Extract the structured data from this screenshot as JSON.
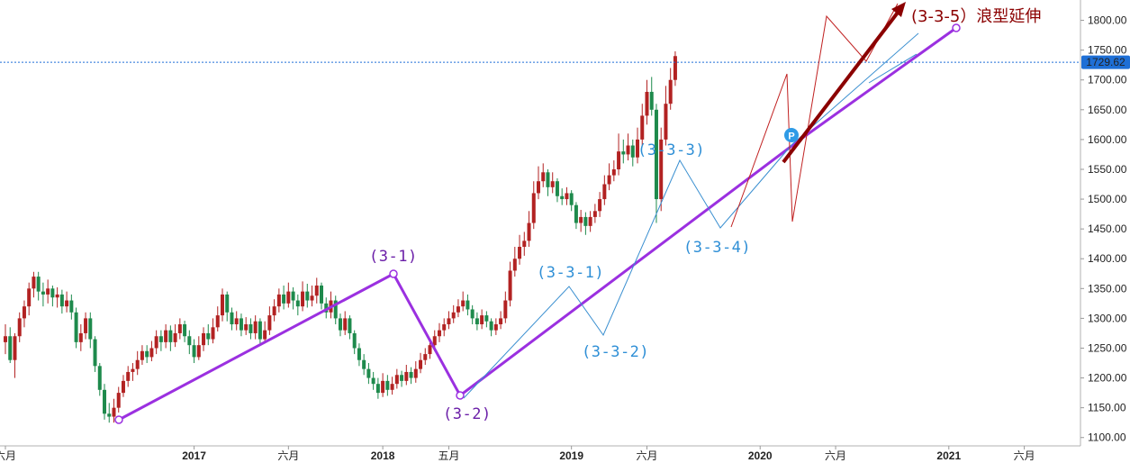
{
  "chart_data": {
    "type": "candlestick",
    "price_axis": {
      "ticks": [
        1100,
        1150,
        1200,
        1250,
        1300,
        1350,
        1400,
        1450,
        1500,
        1550,
        1600,
        1650,
        1700,
        1750,
        1800
      ],
      "tick_labels": [
        "1100.00",
        "1150.00",
        "1200.00",
        "1250.00",
        "1300.00",
        "1350.00",
        "1400.00",
        "1450.00",
        "1500.00",
        "1550.00",
        "1600.00",
        "1650.00",
        "1700.00",
        "1750.00",
        "1800.00"
      ],
      "range": [
        1086,
        1822
      ],
      "position": "right"
    },
    "time_axis": {
      "labels": [
        {
          "text": "六月",
          "t": 0,
          "year": false
        },
        {
          "text": "2017",
          "t": 2.0,
          "year": true
        },
        {
          "text": "六月",
          "t": 3.0,
          "year": false
        },
        {
          "text": "2018",
          "t": 4.0,
          "year": true
        },
        {
          "text": "五月",
          "t": 4.7,
          "year": false
        },
        {
          "text": "2019",
          "t": 6.0,
          "year": true
        },
        {
          "text": "六月",
          "t": 6.8,
          "year": false
        },
        {
          "text": "2020",
          "t": 8.0,
          "year": true
        },
        {
          "text": "六月",
          "t": 8.8,
          "year": false
        },
        {
          "text": "2021",
          "t": 10.0,
          "year": true
        },
        {
          "text": "六月",
          "t": 10.8,
          "year": false
        }
      ]
    },
    "current_price": {
      "value": 1729.62,
      "label": "1729.62",
      "color": "#1e6fd6"
    },
    "candles": [
      [
        0.0,
        1260,
        1270,
        1290,
        1240
      ],
      [
        0.05,
        1270,
        1230,
        1285,
        1225
      ],
      [
        0.1,
        1230,
        1270,
        1275,
        1200
      ],
      [
        0.15,
        1270,
        1300,
        1310,
        1260
      ],
      [
        0.2,
        1300,
        1320,
        1330,
        1285
      ],
      [
        0.25,
        1320,
        1350,
        1360,
        1305
      ],
      [
        0.3,
        1350,
        1370,
        1378,
        1335
      ],
      [
        0.35,
        1370,
        1345,
        1378,
        1330
      ],
      [
        0.4,
        1345,
        1340,
        1360,
        1320
      ],
      [
        0.45,
        1340,
        1350,
        1365,
        1325
      ],
      [
        0.5,
        1350,
        1335,
        1355,
        1320
      ],
      [
        0.55,
        1335,
        1340,
        1352,
        1318
      ],
      [
        0.6,
        1340,
        1320,
        1348,
        1308
      ],
      [
        0.65,
        1320,
        1330,
        1345,
        1310
      ],
      [
        0.7,
        1330,
        1310,
        1340,
        1298
      ],
      [
        0.75,
        1310,
        1260,
        1318,
        1250
      ],
      [
        0.8,
        1260,
        1275,
        1290,
        1245
      ],
      [
        0.85,
        1275,
        1300,
        1310,
        1265
      ],
      [
        0.9,
        1300,
        1265,
        1310,
        1250
      ],
      [
        0.95,
        1265,
        1220,
        1270,
        1210
      ],
      [
        1.0,
        1220,
        1180,
        1225,
        1170
      ],
      [
        1.05,
        1180,
        1140,
        1190,
        1130
      ],
      [
        1.1,
        1140,
        1135,
        1158,
        1125
      ],
      [
        1.15,
        1135,
        1150,
        1165,
        1125
      ],
      [
        1.2,
        1150,
        1175,
        1185,
        1142
      ],
      [
        1.25,
        1175,
        1195,
        1205,
        1168
      ],
      [
        1.3,
        1195,
        1210,
        1220,
        1185
      ],
      [
        1.35,
        1210,
        1215,
        1225,
        1195
      ],
      [
        1.4,
        1215,
        1230,
        1245,
        1205
      ],
      [
        1.45,
        1230,
        1245,
        1255,
        1222
      ],
      [
        1.5,
        1245,
        1235,
        1255,
        1225
      ],
      [
        1.55,
        1235,
        1250,
        1262,
        1228
      ],
      [
        1.6,
        1250,
        1270,
        1280,
        1240
      ],
      [
        1.65,
        1270,
        1260,
        1280,
        1245
      ],
      [
        1.7,
        1260,
        1280,
        1290,
        1250
      ],
      [
        1.75,
        1280,
        1260,
        1288,
        1245
      ],
      [
        1.8,
        1260,
        1275,
        1290,
        1252
      ],
      [
        1.85,
        1275,
        1290,
        1300,
        1265
      ],
      [
        1.9,
        1290,
        1270,
        1296,
        1260
      ],
      [
        1.95,
        1270,
        1255,
        1280,
        1240
      ],
      [
        2.0,
        1255,
        1235,
        1265,
        1225
      ],
      [
        2.05,
        1235,
        1255,
        1270,
        1230
      ],
      [
        2.1,
        1255,
        1275,
        1285,
        1245
      ],
      [
        2.15,
        1275,
        1265,
        1290,
        1255
      ],
      [
        2.2,
        1265,
        1285,
        1300,
        1258
      ],
      [
        2.25,
        1285,
        1305,
        1320,
        1278
      ],
      [
        2.3,
        1305,
        1340,
        1350,
        1295
      ],
      [
        2.35,
        1340,
        1310,
        1345,
        1295
      ],
      [
        2.4,
        1310,
        1290,
        1318,
        1280
      ],
      [
        2.45,
        1290,
        1300,
        1312,
        1280
      ],
      [
        2.5,
        1300,
        1280,
        1308,
        1270
      ],
      [
        2.55,
        1280,
        1290,
        1302,
        1272
      ],
      [
        2.6,
        1290,
        1275,
        1300,
        1265
      ],
      [
        2.65,
        1275,
        1295,
        1305,
        1265
      ],
      [
        2.7,
        1295,
        1265,
        1300,
        1255
      ],
      [
        2.75,
        1265,
        1280,
        1295,
        1258
      ],
      [
        2.8,
        1280,
        1305,
        1320,
        1272
      ],
      [
        2.85,
        1305,
        1320,
        1332,
        1295
      ],
      [
        2.9,
        1320,
        1340,
        1350,
        1310
      ],
      [
        2.95,
        1340,
        1325,
        1355,
        1315
      ],
      [
        3.0,
        1325,
        1345,
        1360,
        1318
      ],
      [
        3.05,
        1345,
        1330,
        1352,
        1315
      ],
      [
        3.1,
        1330,
        1320,
        1340,
        1305
      ],
      [
        3.15,
        1320,
        1345,
        1362,
        1312
      ],
      [
        3.2,
        1345,
        1330,
        1358,
        1318
      ],
      [
        3.25,
        1330,
        1338,
        1355,
        1320
      ],
      [
        3.3,
        1338,
        1355,
        1368,
        1325
      ],
      [
        3.35,
        1355,
        1325,
        1360,
        1315
      ],
      [
        3.4,
        1325,
        1310,
        1335,
        1300
      ],
      [
        3.45,
        1310,
        1330,
        1345,
        1300
      ],
      [
        3.5,
        1330,
        1300,
        1338,
        1290
      ],
      [
        3.55,
        1300,
        1280,
        1308,
        1270
      ],
      [
        3.6,
        1280,
        1300,
        1312,
        1272
      ],
      [
        3.65,
        1300,
        1275,
        1305,
        1265
      ],
      [
        3.7,
        1275,
        1250,
        1280,
        1240
      ],
      [
        3.75,
        1250,
        1230,
        1258,
        1220
      ],
      [
        3.8,
        1230,
        1215,
        1240,
        1205
      ],
      [
        3.85,
        1215,
        1200,
        1225,
        1190
      ],
      [
        3.9,
        1200,
        1190,
        1210,
        1180
      ],
      [
        3.95,
        1190,
        1175,
        1200,
        1165
      ],
      [
        4.0,
        1175,
        1195,
        1208,
        1168
      ],
      [
        4.05,
        1195,
        1180,
        1205,
        1170
      ],
      [
        4.1,
        1180,
        1190,
        1202,
        1172
      ],
      [
        4.15,
        1190,
        1205,
        1215,
        1182
      ],
      [
        4.2,
        1205,
        1195,
        1212,
        1185
      ],
      [
        4.25,
        1195,
        1210,
        1222,
        1188
      ],
      [
        4.3,
        1210,
        1200,
        1218,
        1190
      ],
      [
        4.35,
        1200,
        1215,
        1228,
        1192
      ],
      [
        4.4,
        1215,
        1230,
        1242,
        1208
      ],
      [
        4.45,
        1230,
        1240,
        1250,
        1222
      ],
      [
        4.5,
        1240,
        1255,
        1265,
        1232
      ],
      [
        4.55,
        1255,
        1270,
        1280,
        1245
      ],
      [
        4.6,
        1270,
        1280,
        1292,
        1260
      ],
      [
        4.65,
        1280,
        1290,
        1300,
        1270
      ],
      [
        4.7,
        1290,
        1300,
        1312,
        1282
      ],
      [
        4.75,
        1300,
        1310,
        1322,
        1292
      ],
      [
        4.8,
        1310,
        1320,
        1332,
        1302
      ],
      [
        4.85,
        1320,
        1330,
        1345,
        1312
      ],
      [
        4.9,
        1330,
        1315,
        1340,
        1305
      ],
      [
        4.95,
        1315,
        1300,
        1322,
        1290
      ],
      [
        5.0,
        1300,
        1290,
        1310,
        1280
      ],
      [
        5.05,
        1290,
        1305,
        1315,
        1282
      ],
      [
        5.1,
        1305,
        1295,
        1312,
        1285
      ],
      [
        5.15,
        1295,
        1280,
        1300,
        1270
      ],
      [
        5.2,
        1280,
        1290,
        1300,
        1272
      ],
      [
        5.25,
        1290,
        1300,
        1312,
        1282
      ],
      [
        5.3,
        1300,
        1330,
        1345,
        1292
      ],
      [
        5.35,
        1330,
        1380,
        1395,
        1320
      ],
      [
        5.4,
        1380,
        1400,
        1420,
        1370
      ],
      [
        5.45,
        1400,
        1420,
        1440,
        1390
      ],
      [
        5.5,
        1420,
        1430,
        1445,
        1405
      ],
      [
        5.55,
        1430,
        1460,
        1480,
        1420
      ],
      [
        5.6,
        1460,
        1510,
        1530,
        1450
      ],
      [
        5.65,
        1510,
        1530,
        1555,
        1500
      ],
      [
        5.7,
        1530,
        1545,
        1560,
        1520
      ],
      [
        5.75,
        1545,
        1520,
        1550,
        1505
      ],
      [
        5.8,
        1520,
        1530,
        1545,
        1510
      ],
      [
        5.85,
        1530,
        1505,
        1535,
        1495
      ],
      [
        5.9,
        1505,
        1500,
        1518,
        1490
      ],
      [
        5.95,
        1500,
        1510,
        1520,
        1490
      ],
      [
        6.0,
        1510,
        1490,
        1515,
        1480
      ],
      [
        6.05,
        1490,
        1460,
        1495,
        1450
      ],
      [
        6.1,
        1460,
        1470,
        1482,
        1445
      ],
      [
        6.15,
        1470,
        1455,
        1478,
        1440
      ],
      [
        6.2,
        1455,
        1470,
        1480,
        1445
      ],
      [
        6.25,
        1470,
        1480,
        1492,
        1460
      ],
      [
        6.3,
        1480,
        1500,
        1512,
        1470
      ],
      [
        6.35,
        1500,
        1525,
        1540,
        1490
      ],
      [
        6.4,
        1525,
        1540,
        1560,
        1515
      ],
      [
        6.45,
        1540,
        1550,
        1565,
        1530
      ],
      [
        6.5,
        1550,
        1580,
        1610,
        1540
      ],
      [
        6.55,
        1580,
        1575,
        1600,
        1560
      ],
      [
        6.6,
        1575,
        1590,
        1610,
        1565
      ],
      [
        6.65,
        1590,
        1570,
        1600,
        1555
      ],
      [
        6.7,
        1570,
        1600,
        1620,
        1560
      ],
      [
        6.75,
        1600,
        1640,
        1660,
        1590
      ],
      [
        6.8,
        1640,
        1680,
        1700,
        1625
      ],
      [
        6.85,
        1680,
        1650,
        1705,
        1640
      ],
      [
        6.9,
        1650,
        1500,
        1660,
        1460
      ],
      [
        6.95,
        1500,
        1600,
        1620,
        1480
      ],
      [
        7.0,
        1600,
        1660,
        1690,
        1590
      ],
      [
        7.05,
        1660,
        1700,
        1720,
        1650
      ],
      [
        7.1,
        1700,
        1740,
        1748,
        1690
      ]
    ],
    "annotations": [
      {
        "text": "(3-1)",
        "color": "#6b1fa8"
      },
      {
        "text": "(3-2)",
        "color": "#6b1fa8"
      },
      {
        "text": "(3-3-1)",
        "color": "#2f8fd6"
      },
      {
        "text": "(3-3-2)",
        "color": "#2f8fd6"
      },
      {
        "text": "(3-3-3)",
        "color": "#2f8fd6"
      },
      {
        "text": "(3-3-4)",
        "color": "#2f8fd6"
      },
      {
        "text": "(3-3-5）浪型延伸",
        "color": "#8b0000"
      }
    ],
    "marker": {
      "text": "P",
      "color": "#2f9be6"
    },
    "colors": {
      "up": "#b22222",
      "down": "#1e8a4c",
      "purple": "#9b30e0",
      "blue_wave": "#3a8fd0",
      "red_wave": "#c02020",
      "arrow": "#8b0000"
    }
  }
}
